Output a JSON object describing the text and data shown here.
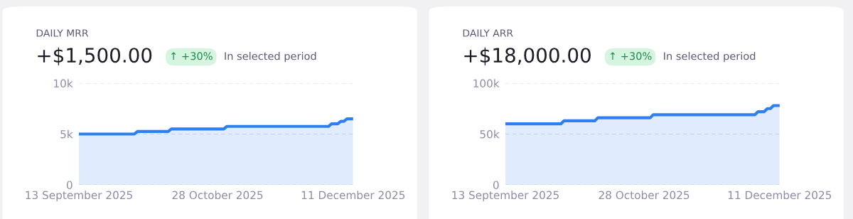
{
  "chart_data": [
    {
      "type": "area",
      "title": "DAILY MRR",
      "subtitle": "+$1,500.00",
      "annotations": [
        "↑ +30%",
        "In selected period"
      ],
      "x": [
        "2025-09-13",
        "2025-10-01",
        "2025-10-02",
        "2025-10-12",
        "2025-10-13",
        "2025-10-30",
        "2025-10-31",
        "2025-12-03",
        "2025-12-04",
        "2025-12-06",
        "2025-12-07",
        "2025-12-08",
        "2025-12-09",
        "2025-12-11"
      ],
      "series": [
        {
          "color": "#2f7ff0",
          "values": [
            5000,
            5000,
            5250,
            5250,
            5500,
            5500,
            5750,
            5750,
            6000,
            6000,
            6250,
            6250,
            6500,
            6500
          ]
        }
      ],
      "xlim": [
        "2025-09-13",
        "2025-12-11"
      ],
      "xticks": [
        {
          "value": "2025-09-13",
          "label": "13 September 2025"
        },
        {
          "value": "2025-10-28",
          "label": "28 October 2025"
        },
        {
          "value": "2025-12-11",
          "label": "11 December 2025"
        }
      ],
      "ylim": [
        0,
        10000
      ],
      "yticks": [
        {
          "value": 0,
          "label": "0"
        },
        {
          "value": 5000,
          "label": "5k"
        },
        {
          "value": 10000,
          "label": "10k"
        }
      ],
      "grid": "y",
      "legend": false
    },
    {
      "type": "area",
      "title": "DAILY ARR",
      "subtitle": "+$18,000.00",
      "annotations": [
        "↑ +30%",
        "In selected period"
      ],
      "x": [
        "2025-09-13",
        "2025-10-01",
        "2025-10-02",
        "2025-10-12",
        "2025-10-13",
        "2025-10-30",
        "2025-10-31",
        "2025-12-03",
        "2025-12-04",
        "2025-12-06",
        "2025-12-07",
        "2025-12-08",
        "2025-12-09",
        "2025-12-11"
      ],
      "series": [
        {
          "color": "#2f7ff0",
          "values": [
            60000,
            60000,
            63000,
            63000,
            66000,
            66000,
            69000,
            69000,
            72000,
            72000,
            75000,
            75000,
            78000,
            78000
          ]
        }
      ],
      "xlim": [
        "2025-09-13",
        "2025-12-11"
      ],
      "xticks": [
        {
          "value": "2025-09-13",
          "label": "13 September 2025"
        },
        {
          "value": "2025-10-28",
          "label": "28 October 2025"
        },
        {
          "value": "2025-12-11",
          "label": "11 December 2025"
        }
      ],
      "ylim": [
        0,
        100000
      ],
      "yticks": [
        {
          "value": 0,
          "label": "0"
        },
        {
          "value": 50000,
          "label": "50k"
        },
        {
          "value": 100000,
          "label": "100k"
        }
      ],
      "grid": "y",
      "legend": false
    }
  ]
}
